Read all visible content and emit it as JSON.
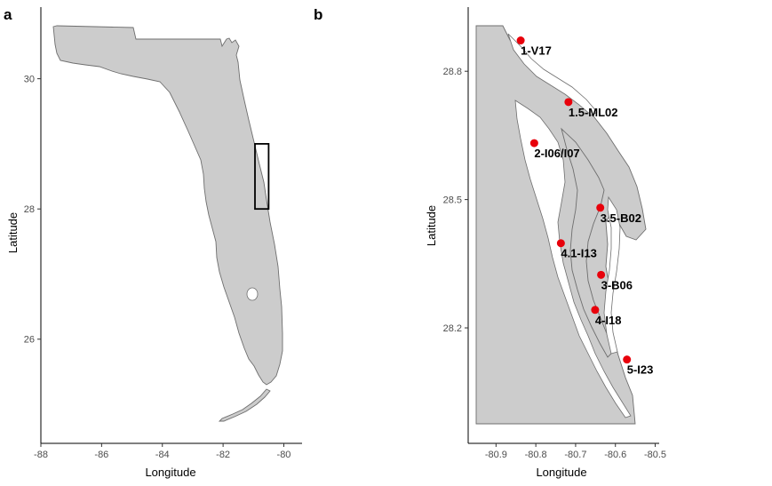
{
  "chart_data": [
    {
      "panel_label": "a",
      "type": "map",
      "xlabel": "Longitude",
      "ylabel": "Latitude",
      "xlim": [
        -88,
        -79.4
      ],
      "ylim": [
        24.4,
        31.1
      ],
      "x_ticks": [
        -88,
        -86,
        -84,
        -82,
        -80
      ],
      "y_ticks": [
        26,
        28,
        30
      ],
      "inset_box": {
        "lon_min": -80.95,
        "lon_max": -80.5,
        "lat_min": 28.0,
        "lat_max": 29.0
      }
    },
    {
      "panel_label": "b",
      "type": "scatter",
      "xlabel": "Longitude",
      "ylabel": "Latitude",
      "xlim": [
        -80.97,
        -80.49
      ],
      "ylim": [
        27.93,
        28.95
      ],
      "x_ticks": [
        -80.9,
        -80.8,
        -80.7,
        -80.6,
        -80.5
      ],
      "y_ticks": [
        28.2,
        28.5,
        28.8
      ],
      "point_color": "#e8000b",
      "sites": [
        {
          "label": "1-V17",
          "lon": -80.838,
          "lat": 28.872
        },
        {
          "label": "1.5-ML02",
          "lon": -80.718,
          "lat": 28.728
        },
        {
          "label": "2-I06/I07",
          "lon": -80.804,
          "lat": 28.632
        },
        {
          "label": "3.5-B02",
          "lon": -80.638,
          "lat": 28.481
        },
        {
          "label": "4.1-I13",
          "lon": -80.737,
          "lat": 28.398
        },
        {
          "label": "3-B06",
          "lon": -80.636,
          "lat": 28.324
        },
        {
          "label": "4-I18",
          "lon": -80.651,
          "lat": 28.242
        },
        {
          "label": "5-I23",
          "lon": -80.571,
          "lat": 28.126
        }
      ]
    }
  ]
}
